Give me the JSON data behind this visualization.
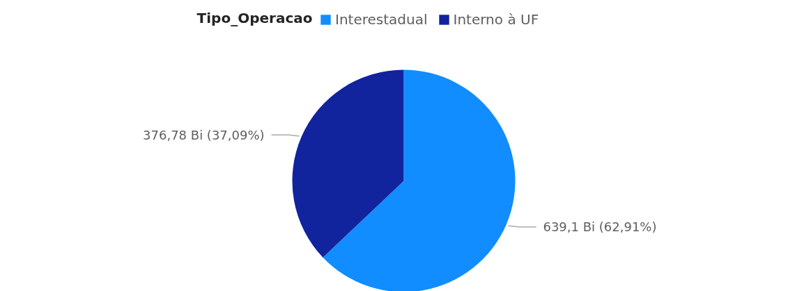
{
  "chart_data": {
    "type": "pie",
    "legend_title": "Tipo_Operacao",
    "legend": "top",
    "categories": [
      "Interestadual",
      "Interno à UF"
    ],
    "values": [
      639.1,
      376.78
    ],
    "colors": [
      "#118dff",
      "#12239e"
    ],
    "value_labels": [
      "639,1 Bi (62,91%)",
      "376,78 Bi (37,09%)"
    ]
  }
}
